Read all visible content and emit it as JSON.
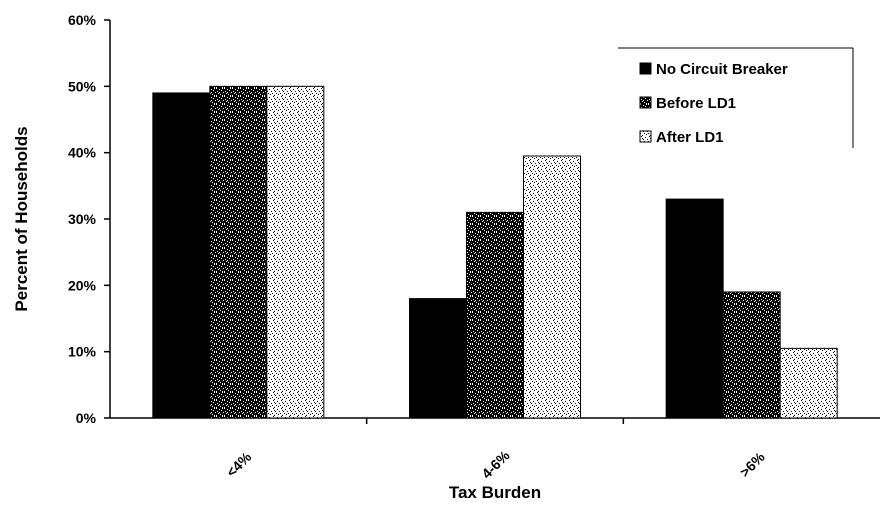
{
  "chart_data": {
    "type": "bar",
    "title": "",
    "xlabel": "Tax Burden",
    "ylabel": "Percent of Households",
    "categories": [
      "<4%",
      "4-6%",
      ">6%"
    ],
    "ylim": [
      0,
      60
    ],
    "yticks": [
      "0%",
      "10%",
      "20%",
      "30%",
      "40%",
      "50%",
      "60%"
    ],
    "series": [
      {
        "name": "No Circuit Breaker",
        "values": [
          49,
          18,
          33
        ],
        "fill": "solid-black"
      },
      {
        "name": "Before LD1",
        "values": [
          50,
          31,
          19
        ],
        "fill": "dense-speckle"
      },
      {
        "name": "After LD1",
        "values": [
          50,
          39.5,
          10.5
        ],
        "fill": "light-speckle"
      }
    ],
    "legend": {
      "position": "top-right"
    },
    "grid": false,
    "colors": {
      "bar_dark": "#000000",
      "bar_light": "#ffffff",
      "axis": "#000000"
    }
  }
}
